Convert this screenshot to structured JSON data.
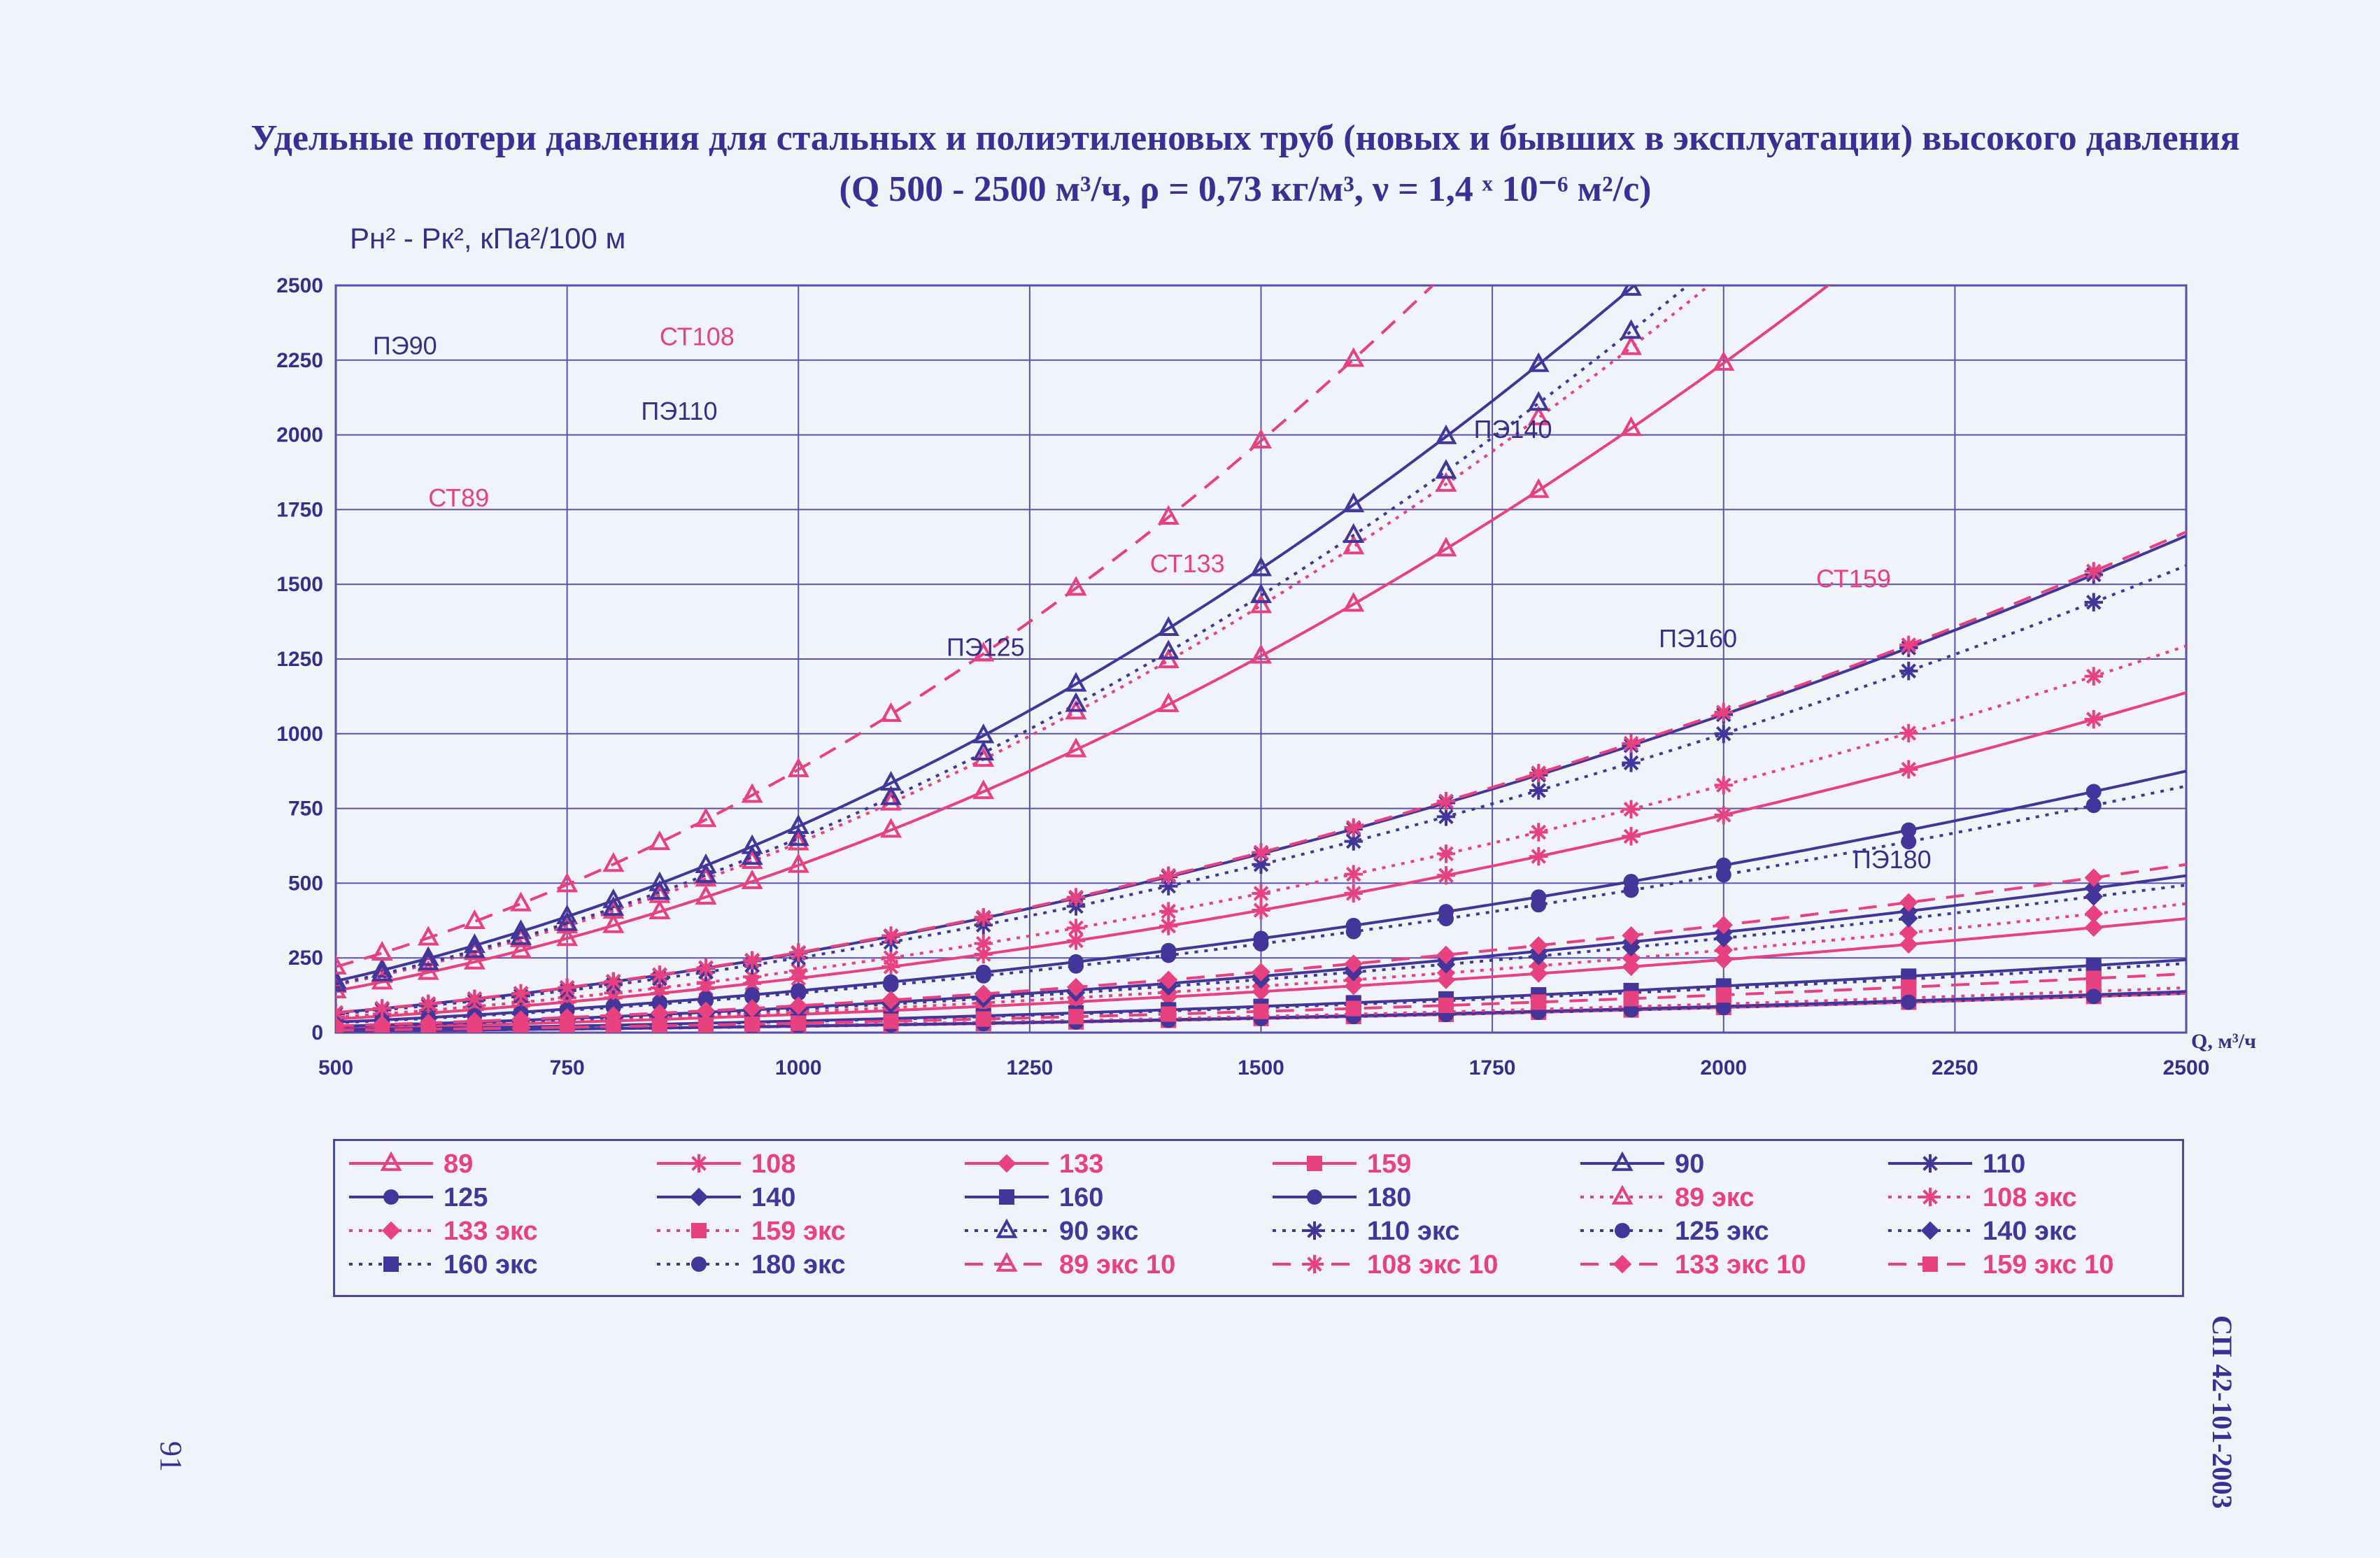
{
  "page": {
    "title_line1": "Удельные потери давления для стальных и полиэтиленовых труб (новых и бывших в эксплуатации) высокого давления",
    "title_line2": "(Q 500 - 2500 м³/ч, ρ = 0,73 кг/м³, ν = 1,4 ˣ 10⁻⁶ м²/с)",
    "document_code": "СП 42-101-2003",
    "page_number": "91"
  },
  "chart_data": {
    "type": "line",
    "title": "",
    "ylabel": "Pн² - Pк², кПа²/100 м",
    "xlabel": "Q, м³/ч",
    "xlim": [
      500,
      2500
    ],
    "ylim": [
      0,
      2500
    ],
    "x_ticks": [
      500,
      750,
      1000,
      1250,
      1500,
      1750,
      2000,
      2250,
      2500
    ],
    "y_ticks": [
      0,
      250,
      500,
      750,
      1000,
      1250,
      1500,
      1750,
      2000,
      2250,
      2500
    ],
    "x_tick_labels": [
      "500",
      "750",
      "1000",
      "1250",
      "1500",
      "1750",
      "2000",
      "2250",
      "2500"
    ],
    "y_tick_labels": [
      "0",
      "250",
      "500",
      "750",
      "1000",
      "1250",
      "1500",
      "1750",
      "2000",
      "2250",
      "2500"
    ],
    "grid": true,
    "legend_position": "bottom",
    "colors": {
      "steel": "#e8417f",
      "polyethylene": "#43359a",
      "grid": "#5b4fb0"
    },
    "curve_labels": [
      {
        "text": "ПЭ90",
        "x": 540,
        "y": 2270,
        "color": "#3a2d8a"
      },
      {
        "text": "СТ108",
        "x": 850,
        "y": 2300,
        "color": "#e8417f"
      },
      {
        "text": "СТ89",
        "x": 600,
        "y": 1760,
        "color": "#e8417f"
      },
      {
        "text": "ПЭ110",
        "x": 830,
        "y": 2050,
        "color": "#3a2d8a"
      },
      {
        "text": "ПЭ140",
        "x": 1730,
        "y": 1990,
        "color": "#3a2d8a"
      },
      {
        "text": "СТ133",
        "x": 1380,
        "y": 1540,
        "color": "#e8417f"
      },
      {
        "text": "ПЭ125",
        "x": 1160,
        "y": 1260,
        "color": "#3a2d8a"
      },
      {
        "text": "СТ159",
        "x": 2100,
        "y": 1490,
        "color": "#e8417f"
      },
      {
        "text": "ПЭ160",
        "x": 1930,
        "y": 1290,
        "color": "#3a2d8a"
      },
      {
        "text": "ПЭ180",
        "x": 2140,
        "y": 550,
        "color": "#3a2d8a"
      }
    ],
    "series": [
      {
        "name": "89",
        "k": 5.6,
        "color": "#e8417f",
        "dash": "solid",
        "marker": "triangle-open"
      },
      {
        "name": "108",
        "k": 1.82,
        "color": "#e8417f",
        "dash": "solid",
        "marker": "asterisk"
      },
      {
        "name": "133",
        "k": 0.61,
        "color": "#e8417f",
        "dash": "solid",
        "marker": "diamond"
      },
      {
        "name": "159",
        "k": 0.21,
        "color": "#e8417f",
        "dash": "solid",
        "marker": "square"
      },
      {
        "name": "90",
        "k": 6.9,
        "color": "#43359a",
        "dash": "solid",
        "marker": "triangle-open"
      },
      {
        "name": "110",
        "k": 2.66,
        "color": "#43359a",
        "dash": "solid",
        "marker": "asterisk"
      },
      {
        "name": "125",
        "k": 1.4,
        "color": "#43359a",
        "dash": "solid",
        "marker": "circle"
      },
      {
        "name": "140",
        "k": 0.84,
        "color": "#43359a",
        "dash": "solid",
        "marker": "diamond"
      },
      {
        "name": "160",
        "k": 0.39,
        "color": "#43359a",
        "dash": "solid",
        "marker": "square"
      },
      {
        "name": "180",
        "k": 0.22,
        "color": "#43359a",
        "dash": "solid",
        "marker": "circle"
      },
      {
        "name": "89 экс",
        "k": 6.35,
        "color": "#e8417f",
        "dash": "dotted",
        "marker": "triangle-open"
      },
      {
        "name": "108 экс",
        "k": 2.07,
        "color": "#e8417f",
        "dash": "dotted",
        "marker": "asterisk"
      },
      {
        "name": "133 экс",
        "k": 0.69,
        "color": "#e8417f",
        "dash": "dotted",
        "marker": "diamond"
      },
      {
        "name": "159 экс",
        "k": 0.24,
        "color": "#e8417f",
        "dash": "dotted",
        "marker": "square"
      },
      {
        "name": "90 экс",
        "k": 6.5,
        "color": "#43359a",
        "dash": "dotted",
        "marker": "triangle-open"
      },
      {
        "name": "110 экс",
        "k": 2.5,
        "color": "#43359a",
        "dash": "dotted",
        "marker": "asterisk"
      },
      {
        "name": "125 экс",
        "k": 1.32,
        "color": "#43359a",
        "dash": "dotted",
        "marker": "circle"
      },
      {
        "name": "140 экс",
        "k": 0.79,
        "color": "#43359a",
        "dash": "dotted",
        "marker": "diamond"
      },
      {
        "name": "160 экс",
        "k": 0.37,
        "color": "#43359a",
        "dash": "dotted",
        "marker": "square"
      },
      {
        "name": "180 экс",
        "k": 0.21,
        "color": "#43359a",
        "dash": "dotted",
        "marker": "circle"
      },
      {
        "name": "89 экс 10",
        "k": 8.8,
        "color": "#e8417f",
        "dash": "dashed",
        "marker": "triangle-open"
      },
      {
        "name": "108 экс 10",
        "k": 2.68,
        "color": "#e8417f",
        "dash": "dashed",
        "marker": "asterisk"
      },
      {
        "name": "133 экс 10",
        "k": 0.9,
        "color": "#e8417f",
        "dash": "dashed",
        "marker": "diamond"
      },
      {
        "name": "159 экс 10",
        "k": 0.315,
        "color": "#e8417f",
        "dash": "dashed",
        "marker": "square"
      }
    ]
  }
}
